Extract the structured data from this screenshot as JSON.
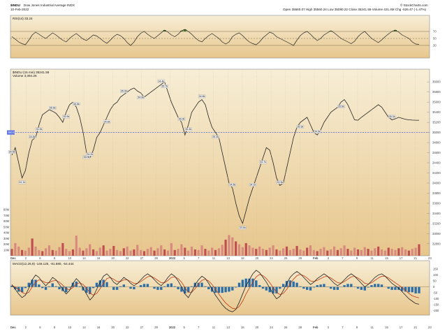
{
  "header": {
    "symbol": "$INDU",
    "name": "Dow Jones Industrial Average INDX",
    "date": "10-Feb-2022",
    "quote_line": "Open 35560.07  High 35560.24  Low 35080.22  Close 35241.59  Volume 421.4M  Chg -526.47 (-1.47%)",
    "watermark": "© StockCharts.com"
  },
  "rsi_panel": {
    "label": "RSI(14) 33.24",
    "levels": [
      70,
      50,
      30
    ],
    "level_labels": [
      "70",
      "50",
      "30"
    ]
  },
  "price_panel": {
    "label": "$INDU (15 min) 35241.59",
    "volume_label": "Volume 3,394.2K",
    "reference_line": 35000,
    "reference_label": "35033",
    "y_ticks": [
      "36000",
      "35800",
      "35600",
      "35400",
      "35200",
      "35000",
      "34800",
      "34600",
      "34400",
      "34200",
      "34000",
      "33800",
      "33600",
      "33400",
      "33200",
      "33000",
      "32800"
    ],
    "volume_ticks": [
      "80M",
      "70M",
      "60M",
      "50M",
      "40M",
      "30M",
      "20M",
      "10M"
    ]
  },
  "macd_panel": {
    "label": "MACD(12,26,9) -146.125, -91.680, -54.444",
    "y_ticks": [
      "150",
      "100",
      "50",
      "0",
      "-50",
      "-100",
      "-150",
      "-200"
    ]
  },
  "x_axis": {
    "labels": [
      "Dec",
      "2",
      "6",
      "8",
      "10",
      "14",
      "16",
      "20",
      "22",
      "27",
      "29",
      "2022",
      "5",
      "7",
      "11",
      "13",
      "18",
      "20",
      "24",
      "26",
      "28",
      "Feb",
      "3",
      "7",
      "9",
      "11",
      "15",
      "17",
      "21",
      "23"
    ]
  },
  "annotations": [
    "34.5k",
    "34.1k",
    "34.8k",
    "34.9k",
    "35.6k",
    "35.9k",
    "35.5k",
    "35.0k",
    "34.2k",
    "34.6k",
    "35.0k",
    "34.9k",
    "34.4k",
    "35.7k",
    "36.0k",
    "35.3k",
    "34.8k",
    "35.3k",
    "34.5k",
    "33.6k",
    "34.1k",
    "34.7k",
    "33.9k",
    "35.3k",
    "34.9k",
    "35.6k",
    "35.0k"
  ],
  "colors": {
    "bg_top": "#f6ecd2",
    "bg_bottom": "#e8c990",
    "price": "#222222",
    "reference": "#4a63e0",
    "rsi_overbought": "#4d7a2a",
    "rsi_oversold": "#a53030",
    "volume_up": "#d88a80",
    "volume_down": "#c05050",
    "macd_line": "#222222",
    "signal_line": "#c03a10",
    "histogram": "#2b6ea8"
  },
  "chart_data": [
    {
      "type": "line",
      "title": "RSI(14) 33.24",
      "ylim": [
        0,
        100
      ],
      "x": [
        0,
        1,
        2,
        3,
        4,
        5,
        6,
        7,
        8,
        9,
        10,
        11,
        12,
        13,
        14,
        15,
        16,
        17,
        18,
        19,
        20,
        21,
        22,
        23,
        24,
        25,
        26,
        27,
        28,
        29,
        30,
        31,
        32,
        33,
        34,
        35,
        36,
        37,
        38,
        39,
        40,
        41,
        42,
        43,
        44,
        45,
        46,
        47,
        48,
        49,
        50,
        51,
        52,
        53,
        54,
        55,
        56,
        57,
        58,
        59,
        60,
        61,
        62,
        63,
        64,
        65,
        66,
        67,
        68,
        69,
        70,
        71,
        72,
        73,
        74,
        75,
        76,
        77,
        78,
        79,
        80,
        81,
        82,
        83,
        84,
        85,
        86,
        87,
        88,
        89,
        90,
        91,
        92,
        93,
        94,
        95,
        96,
        97,
        98,
        99,
        100,
        101,
        102,
        103,
        104,
        105,
        106,
        107,
        108,
        109,
        110,
        111,
        112,
        113,
        114,
        115,
        116,
        117,
        118,
        119,
        120
      ],
      "series": [
        {
          "values": [
            55,
            48,
            40,
            35,
            32,
            45,
            60,
            68,
            62,
            55,
            50,
            58,
            66,
            60,
            52,
            45,
            40,
            50,
            58,
            64,
            56,
            48,
            44,
            52,
            60,
            57,
            50,
            42,
            36,
            45,
            55,
            62,
            58,
            50,
            38,
            30,
            40,
            55,
            65,
            70,
            62,
            55,
            50,
            58,
            66,
            74,
            68,
            60,
            55,
            62,
            72,
            76,
            70,
            62,
            52,
            44,
            40,
            50,
            58,
            64,
            57,
            50,
            40,
            34,
            40,
            55,
            62,
            66,
            58,
            48,
            40,
            35,
            32,
            40,
            52,
            60,
            68,
            64,
            55,
            50,
            45,
            40,
            35,
            30,
            45,
            58,
            66,
            70,
            62,
            52,
            44,
            50,
            60,
            66,
            72,
            66,
            58,
            50,
            45,
            40,
            35,
            42,
            55,
            64,
            70,
            60,
            50,
            44,
            38,
            46,
            55,
            63,
            70,
            74,
            68,
            60,
            55,
            50,
            40,
            34,
            33
          ]
        }
      ]
    },
    {
      "type": "line",
      "title": "$INDU (15 min) 35241.59",
      "ylim": [
        32700,
        36100
      ],
      "x": [
        0,
        1,
        2,
        3,
        4,
        5,
        6,
        7,
        8,
        9,
        10,
        11,
        12,
        13,
        14,
        15,
        16,
        17,
        18,
        19,
        20,
        21,
        22,
        23,
        24,
        25,
        26,
        27,
        28,
        29,
        30,
        31,
        32,
        33,
        34,
        35,
        36,
        37,
        38,
        39,
        40,
        41,
        42,
        43,
        44,
        45,
        46,
        47,
        48,
        49,
        50,
        51,
        52,
        53,
        54,
        55,
        56,
        57,
        58,
        59,
        60,
        61,
        62,
        63,
        64,
        65,
        66,
        67,
        68,
        69,
        70,
        71,
        72,
        73,
        74,
        75,
        76,
        77,
        78,
        79,
        80,
        81,
        82,
        83,
        84,
        85,
        86,
        87,
        88,
        89,
        90,
        91,
        92,
        93,
        94,
        95,
        96,
        97,
        98,
        99,
        100,
        101,
        102,
        103,
        104,
        105,
        106,
        107,
        108,
        109,
        110,
        111,
        112,
        113,
        114,
        115,
        116,
        117,
        118,
        119,
        120
      ],
      "series": [
        {
          "values": [
            34550,
            34700,
            34400,
            34100,
            34250,
            34600,
            34850,
            34900,
            35150,
            35350,
            35400,
            35450,
            35420,
            35380,
            35300,
            35200,
            35400,
            35550,
            35600,
            35500,
            35300,
            35000,
            34600,
            34500,
            34650,
            34900,
            35000,
            35150,
            35300,
            35450,
            35550,
            35600,
            35700,
            35750,
            35800,
            35850,
            35880,
            35820,
            35780,
            35700,
            35750,
            35800,
            35850,
            35900,
            35950,
            36000,
            35800,
            35600,
            35450,
            35300,
            35200,
            34950,
            35150,
            35400,
            35500,
            35600,
            35650,
            35550,
            35300,
            35100,
            35000,
            34900,
            34600,
            34300,
            34000,
            33900,
            33600,
            33350,
            33200,
            33450,
            33700,
            33900,
            34100,
            34300,
            34500,
            34700,
            34650,
            34400,
            34100,
            33950,
            34000,
            34300,
            34600,
            34900,
            35100,
            35200,
            35250,
            35300,
            35150,
            35000,
            34950,
            35050,
            35200,
            35300,
            35400,
            35450,
            35500,
            35600,
            35650,
            35550,
            35400,
            35250,
            35242,
            35300,
            35350,
            35400,
            35450,
            35500,
            35550,
            35500,
            35400,
            35300,
            35250,
            35270,
            35300,
            35280,
            35260,
            35250,
            35245,
            35242,
            35241.59
          ]
        }
      ]
    },
    {
      "type": "bar",
      "title": "Volume 3,394.2K",
      "ylim": [
        0,
        90
      ],
      "values": [
        12,
        22,
        16,
        10,
        9,
        14,
        30,
        16,
        10,
        8,
        13,
        18,
        10,
        9,
        15,
        22,
        12,
        8,
        11,
        35,
        14,
        9,
        13,
        20,
        11,
        8,
        14,
        18,
        9,
        12,
        17,
        10,
        8,
        13,
        16,
        9,
        11,
        19,
        10,
        8,
        12,
        15,
        9,
        13,
        18,
        11,
        9,
        22,
        10,
        12,
        20,
        14,
        9,
        16,
        11,
        10,
        18,
        12,
        9,
        14,
        10,
        13,
        19,
        28,
        36,
        32,
        25,
        20,
        15,
        22,
        18,
        14,
        12,
        16,
        12,
        10,
        14,
        18,
        11,
        9,
        13,
        16,
        10,
        12,
        17,
        11,
        9,
        14,
        18,
        10,
        8,
        12,
        15,
        9,
        11,
        16,
        10,
        13,
        18,
        12,
        9,
        14,
        11,
        10,
        15,
        12,
        9,
        13,
        16,
        11,
        9,
        14,
        12,
        10,
        13,
        15,
        11,
        9,
        12,
        14,
        20
      ]
    },
    {
      "type": "line",
      "title": "MACD(12,26,9) -146.125, -91.680, -54.444",
      "ylim": [
        -220,
        180
      ],
      "x": [
        0,
        1,
        2,
        3,
        4,
        5,
        6,
        7,
        8,
        9,
        10,
        11,
        12,
        13,
        14,
        15,
        16,
        17,
        18,
        19,
        20,
        21,
        22,
        23,
        24,
        25,
        26,
        27,
        28,
        29,
        30,
        31,
        32,
        33,
        34,
        35,
        36,
        37,
        38,
        39,
        40,
        41,
        42,
        43,
        44,
        45,
        46,
        47,
        48,
        49,
        50,
        51,
        52,
        53,
        54,
        55,
        56,
        57,
        58,
        59,
        60,
        61,
        62,
        63,
        64,
        65,
        66,
        67,
        68,
        69,
        70,
        71,
        72,
        73,
        74,
        75,
        76,
        77,
        78,
        79,
        80,
        81,
        82,
        83,
        84,
        85,
        86,
        87,
        88,
        89,
        90,
        91,
        92,
        93,
        94,
        95,
        96,
        97,
        98,
        99,
        100,
        101,
        102,
        103,
        104,
        105,
        106,
        107,
        108,
        109,
        110,
        111,
        112,
        113,
        114,
        115,
        116,
        117,
        118,
        119,
        120
      ],
      "series": [
        {
          "name": "MACD",
          "values": [
            20,
            -20,
            -60,
            -90,
            -70,
            -10,
            60,
            100,
            80,
            40,
            10,
            40,
            80,
            60,
            20,
            -20,
            -60,
            -30,
            30,
            70,
            40,
            -10,
            -60,
            -110,
            -80,
            -20,
            40,
            90,
            110,
            80,
            40,
            20,
            50,
            80,
            60,
            30,
            10,
            30,
            60,
            90,
            110,
            90,
            60,
            30,
            10,
            40,
            80,
            110,
            90,
            50,
            0,
            -60,
            -90,
            -40,
            20,
            60,
            90,
            70,
            30,
            -20,
            -70,
            -110,
            -150,
            -180,
            -200,
            -210,
            -190,
            -130,
            -60,
            10,
            60,
            110,
            140,
            120,
            80,
            40,
            -10,
            -60,
            -100,
            -80,
            -30,
            30,
            80,
            110,
            130,
            110,
            80,
            50,
            20,
            40,
            70,
            90,
            110,
            90,
            60,
            30,
            10,
            30,
            60,
            90,
            110,
            90,
            60,
            30,
            0,
            20,
            50,
            80,
            100,
            110,
            90,
            60,
            30,
            10,
            -10,
            -40,
            -70,
            -100,
            -120,
            -140,
            -146
          ]
        },
        {
          "name": "Signal",
          "values": [
            10,
            0,
            -20,
            -45,
            -60,
            -45,
            0,
            40,
            60,
            50,
            35,
            35,
            50,
            55,
            40,
            15,
            -15,
            -25,
            -5,
            25,
            35,
            20,
            -10,
            -50,
            -70,
            -55,
            -15,
            30,
            70,
            80,
            65,
            45,
            45,
            60,
            60,
            45,
            30,
            30,
            45,
            65,
            85,
            90,
            75,
            55,
            35,
            35,
            55,
            80,
            85,
            70,
            40,
            -5,
            -45,
            -45,
            -15,
            25,
            55,
            65,
            50,
            20,
            -20,
            -60,
            -100,
            -135,
            -160,
            -180,
            -185,
            -165,
            -120,
            -60,
            -10,
            40,
            85,
            105,
            95,
            70,
            35,
            -5,
            -45,
            -65,
            -55,
            -20,
            25,
            65,
            95,
            105,
            95,
            75,
            50,
            45,
            55,
            70,
            85,
            88,
            75,
            55,
            35,
            32,
            45,
            65,
            85,
            88,
            75,
            55,
            30,
            25,
            35,
            55,
            75,
            90,
            90,
            75,
            55,
            35,
            15,
            -5,
            -30,
            -55,
            -75,
            -85,
            -92
          ]
        },
        {
          "name": "Histogram",
          "values": [
            10,
            -20,
            -40,
            -45,
            -10,
            35,
            60,
            60,
            20,
            -10,
            -25,
            5,
            30,
            5,
            -20,
            -35,
            -45,
            -5,
            35,
            45,
            5,
            -30,
            -50,
            -60,
            -10,
            35,
            55,
            60,
            40,
            0,
            -25,
            -25,
            5,
            20,
            0,
            -15,
            -20,
            0,
            15,
            25,
            25,
            0,
            -15,
            -25,
            -25,
            5,
            25,
            30,
            5,
            -20,
            -40,
            -55,
            -45,
            5,
            35,
            35,
            35,
            5,
            -20,
            -40,
            -50,
            -50,
            -50,
            -45,
            -40,
            -30,
            -5,
            35,
            60,
            70,
            70,
            70,
            55,
            15,
            -15,
            -30,
            -45,
            -55,
            -55,
            -15,
            25,
            50,
            55,
            45,
            35,
            5,
            -15,
            -25,
            -30,
            -5,
            15,
            20,
            25,
            2,
            -15,
            -25,
            -25,
            -2,
            15,
            25,
            25,
            2,
            -15,
            -25,
            -30,
            -5,
            15,
            25,
            25,
            20,
            0,
            -15,
            -25,
            -25,
            -25,
            -35,
            -40,
            -45,
            -45,
            -55,
            -54
          ]
        }
      ]
    }
  ]
}
